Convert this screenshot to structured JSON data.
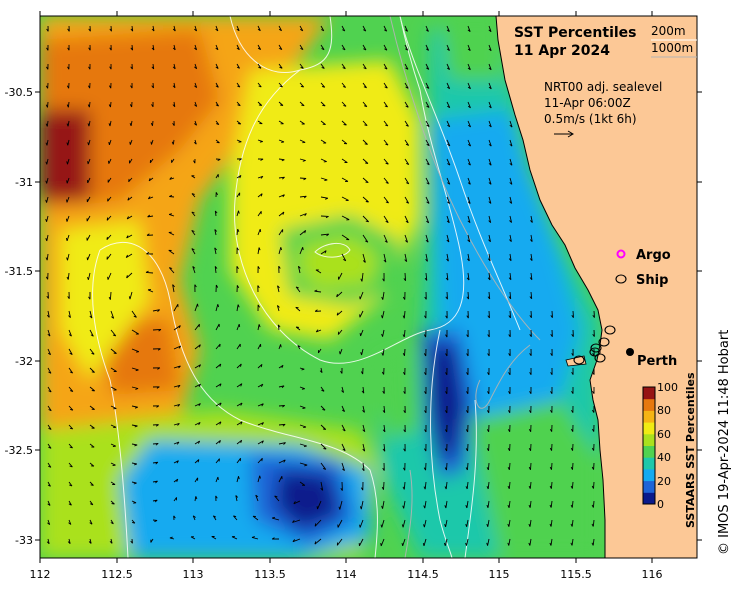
{
  "title": "SST Percentiles",
  "date": "11 Apr 2024",
  "contours": {
    "label_a": "200m",
    "label_b": "1000m"
  },
  "currents": {
    "source": "NRT00 adj. sealevel",
    "time": "11-Apr 06:00Z",
    "scale": "0.5m/s (1kt 6h)"
  },
  "legend": {
    "argo": "Argo",
    "ship": "Ship"
  },
  "city": "Perth",
  "colorbar": {
    "label": "SSTAARS SST Percentiles",
    "ticks": [
      "100",
      "80",
      "60",
      "40",
      "20",
      "0"
    ],
    "colors": [
      "#0a1a8c",
      "#1e64d7",
      "#14aaf0",
      "#1ec8aa",
      "#50d250",
      "#aae11e",
      "#f0eb14",
      "#f5b414",
      "#e6780f",
      "#961414"
    ]
  },
  "credit": "© IMOS 19-Apr-2024 11:48 Hobart",
  "x_axis": {
    "ticks": [
      "112",
      "112.5",
      "113",
      "113.5",
      "114",
      "114.5",
      "115",
      "115.5",
      "116"
    ]
  },
  "y_axis": {
    "ticks": [
      "-30.5",
      "-31",
      "-31.5",
      "-32",
      "-32.5",
      "-33"
    ]
  },
  "colors": {
    "land": "#fcc896",
    "ocean_deep": "#0a1a8c"
  }
}
